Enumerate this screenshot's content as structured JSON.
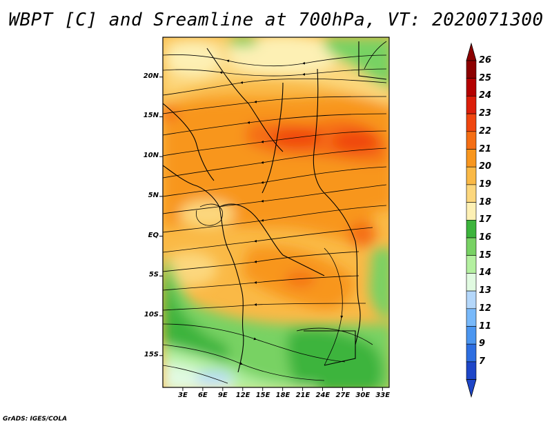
{
  "title": "WBPT [C] and Sreamline at 700hPa, VT: 2020071300",
  "footer": "GrADS: IGES/COLA",
  "map": {
    "lon_range": [
      0,
      34
    ],
    "lat_range": [
      -19,
      25
    ],
    "lat_ticks": [
      {
        "value": 20,
        "label": "20N"
      },
      {
        "value": 15,
        "label": "15N"
      },
      {
        "value": 10,
        "label": "10N"
      },
      {
        "value": 5,
        "label": "5N"
      },
      {
        "value": 0,
        "label": "EQ"
      },
      {
        "value": -5,
        "label": "5S"
      },
      {
        "value": -10,
        "label": "10S"
      },
      {
        "value": -15,
        "label": "15S"
      }
    ],
    "lon_ticks": [
      {
        "value": 3,
        "label": "3E"
      },
      {
        "value": 6,
        "label": "6E"
      },
      {
        "value": 9,
        "label": "9E"
      },
      {
        "value": 12,
        "label": "12E"
      },
      {
        "value": 15,
        "label": "15E"
      },
      {
        "value": 18,
        "label": "18E"
      },
      {
        "value": 21,
        "label": "21E"
      },
      {
        "value": 24,
        "label": "24E"
      },
      {
        "value": 27,
        "label": "27E"
      },
      {
        "value": 30,
        "label": "30E"
      },
      {
        "value": 33,
        "label": "33E"
      }
    ]
  },
  "colorbar": {
    "levels": [
      {
        "label": "26",
        "color": "#8c0000"
      },
      {
        "label": "25",
        "color": "#b40000"
      },
      {
        "label": "24",
        "color": "#dc1e0a"
      },
      {
        "label": "23",
        "color": "#f0460f"
      },
      {
        "label": "22",
        "color": "#f56e14"
      },
      {
        "label": "21",
        "color": "#f8961e"
      },
      {
        "label": "20",
        "color": "#fab946"
      },
      {
        "label": "19",
        "color": "#fcd77d"
      },
      {
        "label": "18",
        "color": "#fdf0b4"
      },
      {
        "label": "17",
        "color": "#3cb43c"
      },
      {
        "label": "16",
        "color": "#78d264"
      },
      {
        "label": "15",
        "color": "#b4f0a0"
      },
      {
        "label": "14",
        "color": "#e1fae1"
      },
      {
        "label": "13",
        "color": "#b4d7fa"
      },
      {
        "label": "12",
        "color": "#78b9fa"
      },
      {
        "label": "11",
        "color": "#4b96f0"
      },
      {
        "label": "9",
        "color": "#2d6ee1"
      },
      {
        "label": "7",
        "color": "#1e46c8"
      }
    ],
    "top_arrow_color": "#8c0000",
    "bottom_arrow_color": "#1e46c8"
  }
}
